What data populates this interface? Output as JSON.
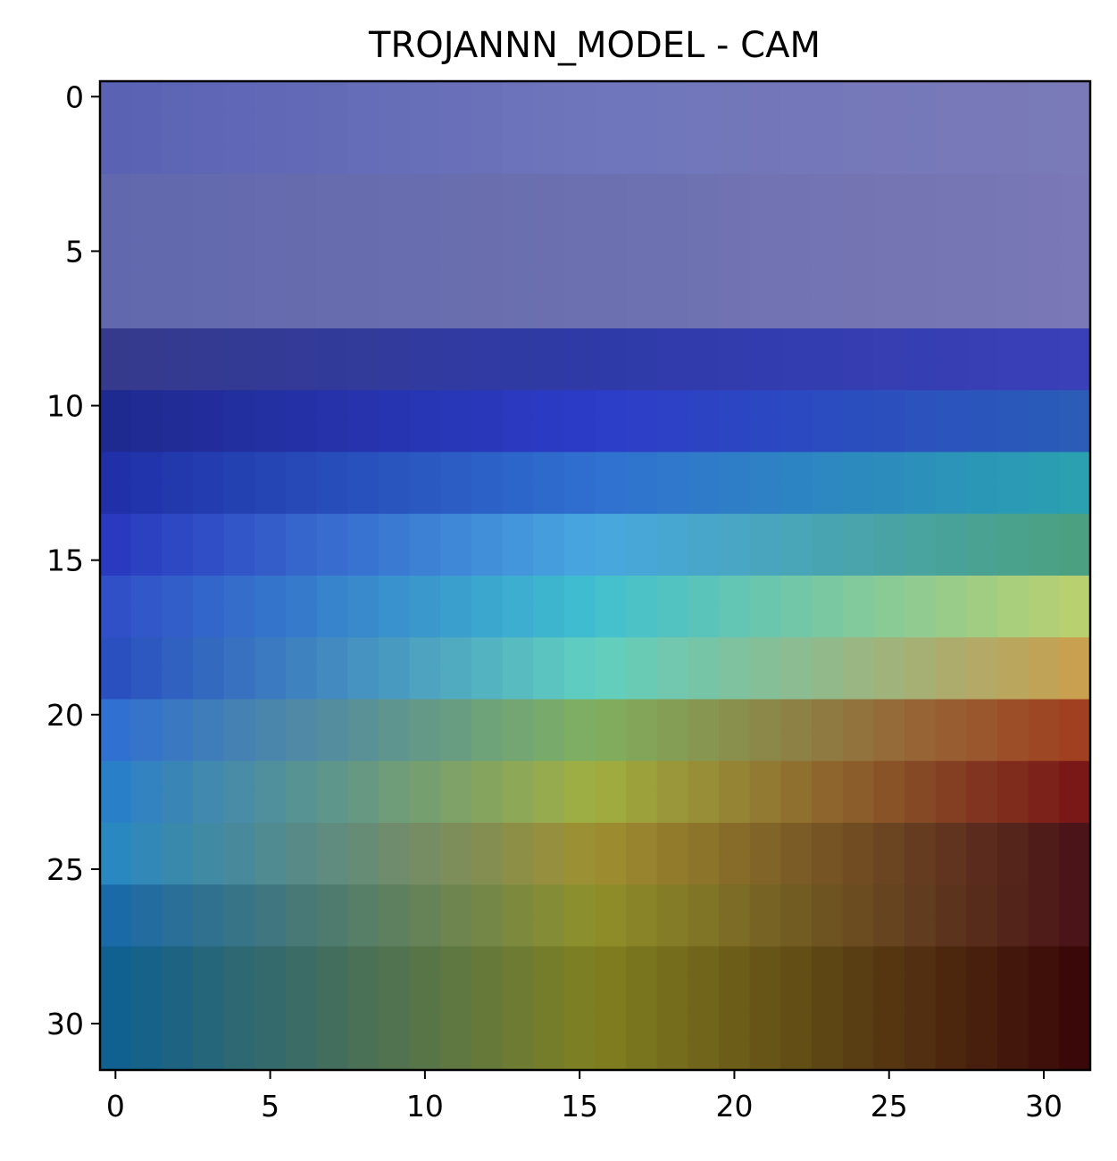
{
  "chart_data": {
    "type": "heatmap",
    "title": "TROJANNN_MODEL - CAM",
    "xlabel": "",
    "ylabel": "",
    "grid_size": 32,
    "x_ticks": [
      0,
      5,
      10,
      15,
      20,
      25,
      30
    ],
    "y_ticks": [
      0,
      5,
      10,
      15,
      20,
      25,
      30
    ],
    "xlim": [
      -0.5,
      31.5
    ],
    "ylim": [
      31.5,
      -0.5
    ],
    "y_axis_inverted": true,
    "grid": false,
    "description_of_values": "image overlaid with a jet-colormap class activation map; activation is high in the bottom-right and low in the top",
    "rows": [
      {
        "row_range": [
          0,
          2
        ],
        "color_left": "#5a62b4",
        "color_mid": "#6f76bb",
        "color_right": "#7a7ab8"
      },
      {
        "row_range": [
          3,
          7
        ],
        "color_left": "#6268ad",
        "color_mid": "#6c70b0",
        "color_right": "#7a78b6"
      },
      {
        "row_range": [
          8,
          9
        ],
        "color_left": "#353a8c",
        "color_mid": "#2f3aa8",
        "color_right": "#3a40b8"
      },
      {
        "row_range": [
          10,
          11
        ],
        "color_left": "#1f2a90",
        "color_mid": "#2c3cc8",
        "color_right": "#2a5cb8"
      },
      {
        "row_range": [
          12,
          13
        ],
        "color_left": "#2030a8",
        "color_mid": "#3070d0",
        "color_right": "#2aa0b0"
      },
      {
        "row_range": [
          14,
          15
        ],
        "color_left": "#2a3ac0",
        "color_mid": "#48a8e0",
        "color_right": "#4aa080"
      },
      {
        "row_range": [
          16,
          17
        ],
        "color_left": "#3050c8",
        "color_mid": "#40c0d0",
        "color_right": "#b8d070"
      },
      {
        "row_range": [
          18,
          19
        ],
        "color_left": "#2a50c0",
        "color_mid": "#60d0c0",
        "color_right": "#c8a050"
      },
      {
        "row_range": [
          20,
          21
        ],
        "color_left": "#3070d0",
        "color_mid": "#80b060",
        "color_right": "#a04020"
      },
      {
        "row_range": [
          22,
          23
        ],
        "color_left": "#2a80c8",
        "color_mid": "#a0b040",
        "color_right": "#7a1818"
      },
      {
        "row_range": [
          24,
          25
        ],
        "color_left": "#2a88c0",
        "color_mid": "#a09030",
        "color_right": "#4a1418"
      },
      {
        "row_range": [
          26,
          27
        ],
        "color_left": "#1a6aa8",
        "color_mid": "#90902a",
        "color_right": "#4a1418"
      },
      {
        "row_range": [
          28,
          31
        ],
        "color_left": "#106090",
        "color_mid": "#808020",
        "color_right": "#3a0808"
      }
    ],
    "colors": {
      "frame": "#000000",
      "background": "#ffffff"
    }
  }
}
